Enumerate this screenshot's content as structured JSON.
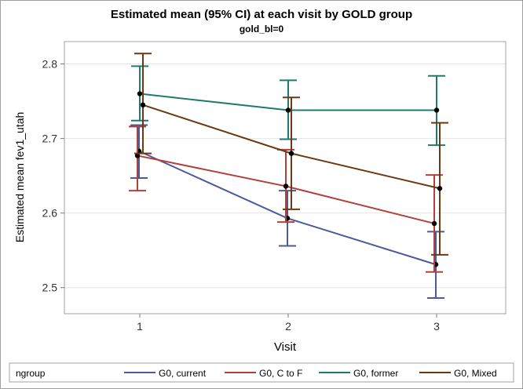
{
  "chart_data": {
    "type": "line",
    "title": "Estimated mean (95% CI) at each visit by GOLD group",
    "subtitle": "gold_bl=0",
    "xlabel": "Visit",
    "ylabel": "Estimated mean fev1_utah",
    "x": [
      1,
      2,
      3
    ],
    "x_ticks": [
      "1",
      "2",
      "3"
    ],
    "ylim": [
      2.465,
      2.83
    ],
    "y_ticks": [
      2.5,
      2.6,
      2.7,
      2.8
    ],
    "y_tick_labels": [
      "2.5",
      "2.6",
      "2.7",
      "2.8"
    ],
    "grid": "horizontal",
    "legend": {
      "title": "ngroup",
      "placement": "bottom"
    },
    "series": [
      {
        "name": "G0, current",
        "color": "#4a5a9a",
        "mean": [
          2.683,
          2.593,
          2.531
        ],
        "lower": [
          2.647,
          2.556,
          2.486
        ],
        "upper": [
          2.718,
          2.63,
          2.575
        ]
      },
      {
        "name": "G0, C to F",
        "color": "#b2403a",
        "mean": [
          2.677,
          2.636,
          2.586
        ],
        "lower": [
          2.63,
          2.588,
          2.521
        ],
        "upper": [
          2.716,
          2.685,
          2.651
        ]
      },
      {
        "name": "G0, former",
        "color": "#1f7a6e",
        "mean": [
          2.76,
          2.738,
          2.738
        ],
        "lower": [
          2.724,
          2.699,
          2.691
        ],
        "upper": [
          2.797,
          2.778,
          2.784
        ]
      },
      {
        "name": "G0, Mixed",
        "color": "#6b3a12",
        "mean": [
          2.745,
          2.68,
          2.633
        ],
        "lower": [
          2.68,
          2.605,
          2.544
        ],
        "upper": [
          2.814,
          2.755,
          2.721
        ]
      }
    ]
  }
}
